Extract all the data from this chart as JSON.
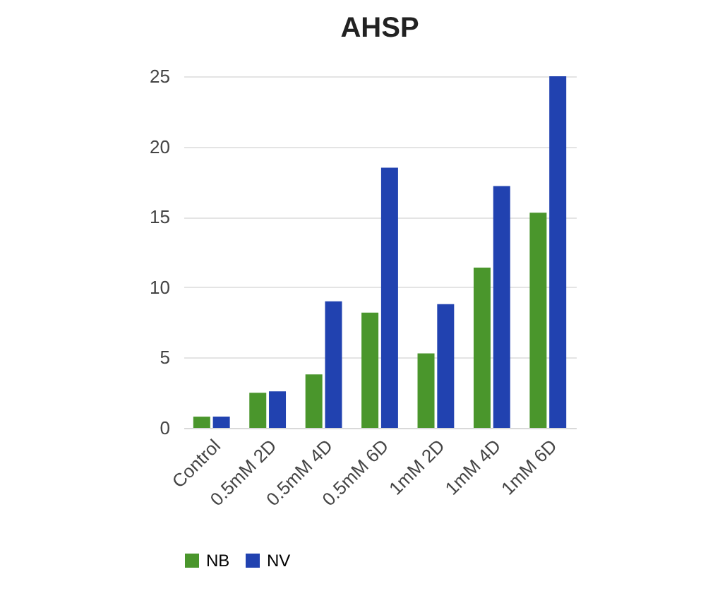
{
  "chart_data": {
    "type": "bar",
    "title": "AHSP",
    "categories": [
      "Control",
      "0.5mM 2D",
      "0.5mM 4D",
      "0.5mM 6D",
      "1mM 2D",
      "1mM 4D",
      "1mM 6D"
    ],
    "series": [
      {
        "name": "NB",
        "color": "#4a962c",
        "values": [
          0.8,
          2.5,
          3.8,
          8.2,
          5.3,
          11.4,
          15.3
        ]
      },
      {
        "name": "NV",
        "color": "#2142b0",
        "values": [
          0.8,
          2.6,
          9.0,
          18.5,
          8.8,
          17.2,
          25.0
        ]
      }
    ],
    "ylim": [
      0,
      25
    ],
    "yticks": [
      0,
      5,
      10,
      15,
      20,
      25
    ],
    "grid": "y",
    "legend": "bottom"
  }
}
